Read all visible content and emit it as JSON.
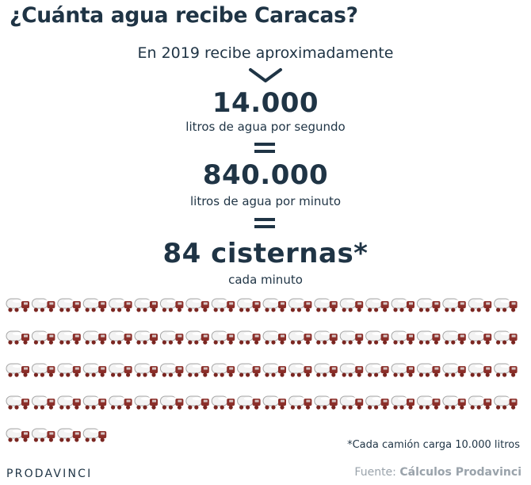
{
  "title": "¿Cuánta agua recibe Caracas?",
  "intro": "En 2019 recibe aproximadamente",
  "facts": [
    {
      "value": "14.000",
      "label": "litros de agua por segundo"
    },
    {
      "value": "840.000",
      "label": "litros de agua por minuto"
    },
    {
      "value": "84 cisternas*",
      "label": "cada minuto"
    }
  ],
  "footnote": "*Cada camión carga 10.000 litros",
  "brand": "PRODAVINCI",
  "source_label": "Fuente:",
  "source_value": "Cálculos Prodavinci",
  "chart_data": {
    "type": "pictogram",
    "icon": "water-tanker-truck-icon",
    "count": 84,
    "unit_liters": 10000,
    "colors": {
      "text": "#1f3445",
      "truck_cab": "#8b2f2a",
      "truck_tank": "#f2f2f2",
      "muted": "#9aa3ab"
    }
  }
}
